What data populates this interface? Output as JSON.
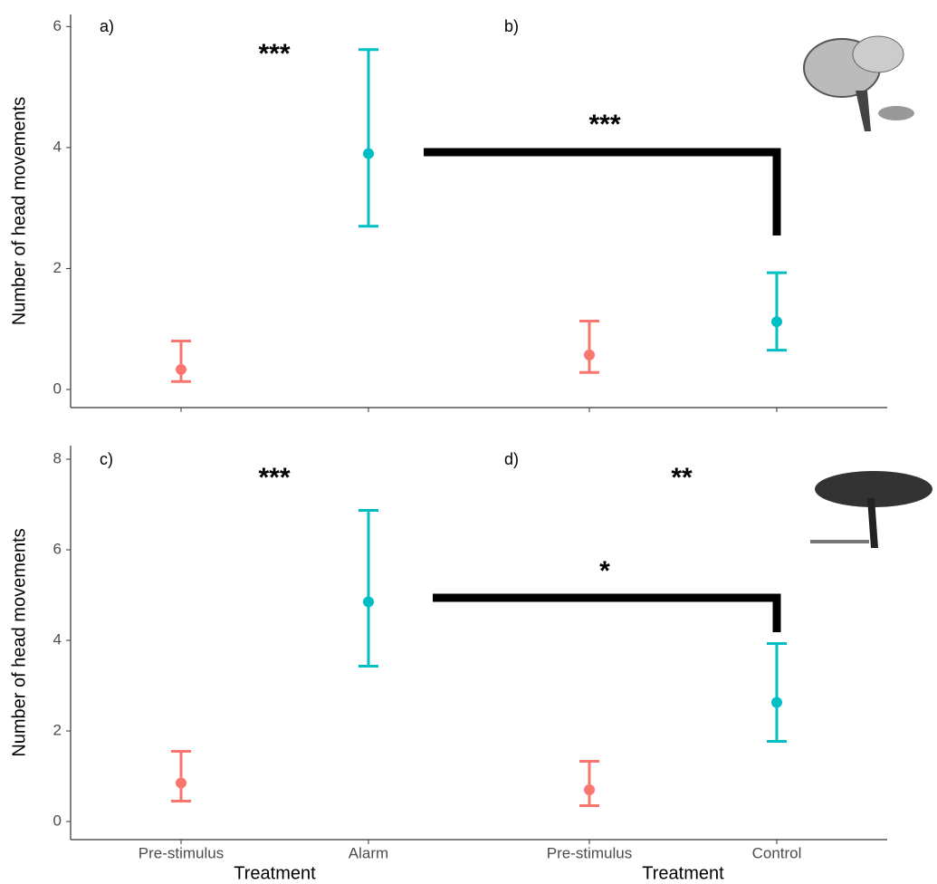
{
  "chart_data": [
    {
      "type": "errorbar",
      "panel_label": "a)",
      "ylabel": "Number of head movements",
      "ylim": [
        -0.3,
        6.2
      ],
      "yticks": [
        0,
        2,
        4,
        6
      ],
      "values": [
        0.33,
        3.9
      ],
      "lower": [
        0.13,
        2.7
      ],
      "upper": [
        0.8,
        5.62
      ],
      "colors": [
        "#f8766d",
        "#00bfc4"
      ],
      "annotations": [
        "***"
      ]
    },
    {
      "type": "errorbar",
      "panel_label": "b)",
      "ylim": [
        -0.3,
        6.2
      ],
      "values": [
        0.57,
        1.12
      ],
      "lower": [
        0.28,
        0.65
      ],
      "upper": [
        1.13,
        1.93
      ],
      "colors": [
        "#f8766d",
        "#00bfc4"
      ],
      "annotations": [
        "***"
      ]
    },
    {
      "type": "errorbar",
      "panel_label": "c)",
      "ylabel": "Number of head movements",
      "ylim": [
        -0.4,
        8.3
      ],
      "yticks": [
        0,
        2,
        4,
        6,
        8
      ],
      "categories": [
        "Pre-stimulus",
        "Alarm"
      ],
      "xlabel": "Treatment",
      "values": [
        0.85,
        4.85
      ],
      "lower": [
        0.45,
        3.43
      ],
      "upper": [
        1.55,
        6.87
      ],
      "colors": [
        "#f8766d",
        "#00bfc4"
      ],
      "annotations": [
        "***"
      ]
    },
    {
      "type": "errorbar",
      "panel_label": "d)",
      "ylim": [
        -0.4,
        8.3
      ],
      "categories": [
        "Pre-stimulus",
        "Control"
      ],
      "xlabel": "Treatment",
      "values": [
        0.7,
        2.63
      ],
      "lower": [
        0.35,
        1.77
      ],
      "upper": [
        1.33,
        3.93
      ],
      "colors": [
        "#f8766d",
        "#00bfc4"
      ],
      "annotations": [
        "**",
        "*"
      ]
    }
  ]
}
